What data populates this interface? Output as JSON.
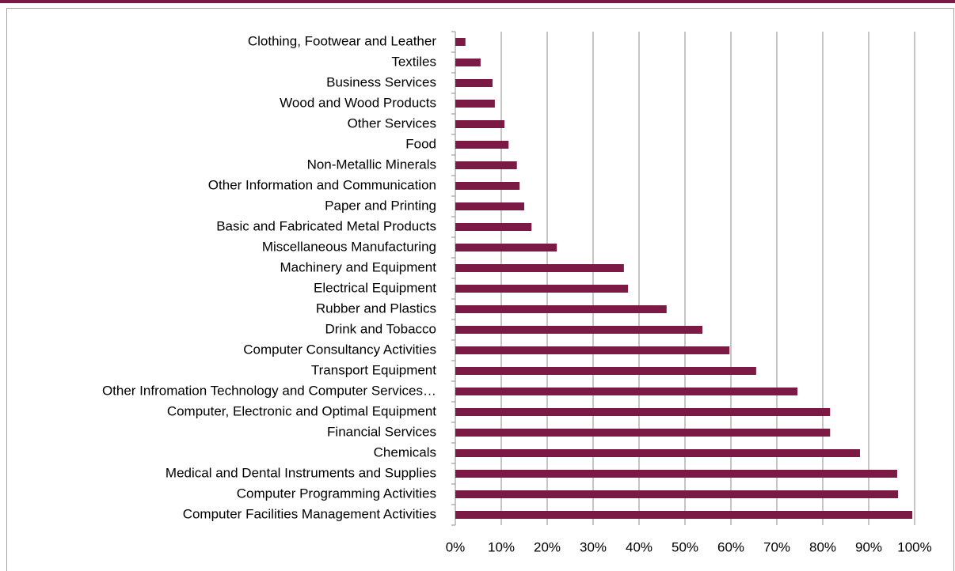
{
  "chart_data": {
    "type": "bar",
    "orientation": "horizontal",
    "categories": [
      "Clothing, Footwear and Leather",
      "Textiles",
      "Business Services",
      "Wood and Wood Products",
      "Other Services",
      "Food",
      "Non-Metallic Minerals",
      "Other Information and Communication",
      "Paper and Printing",
      "Basic and Fabricated Metal Products",
      "Miscellaneous Manufacturing",
      "Machinery and Equipment",
      "Electrical Equipment",
      "Rubber and Plastics",
      "Drink and Tobacco",
      "Computer Consultancy Activities",
      "Transport Equipment",
      "Other Infromation Technology and Computer Services…",
      "Computer, Electronic and Optimal Equipment",
      "Financial Services",
      "Chemicals",
      "Medical and Dental Instruments and Supplies",
      "Computer Programming Activities",
      "Computer Facilities Management Activities"
    ],
    "values": [
      2.2,
      5.5,
      8.1,
      8.6,
      10.7,
      11.6,
      13.4,
      14.0,
      15.0,
      16.6,
      22.1,
      36.7,
      37.6,
      46.0,
      53.8,
      59.7,
      65.5,
      74.5,
      81.6,
      81.6,
      88.1,
      96.2,
      96.4,
      99.5
    ],
    "color": "#7b1b45",
    "xlim": [
      0,
      100
    ],
    "xticks": [
      {
        "value": 0,
        "label": "0%"
      },
      {
        "value": 10,
        "label": "10%"
      },
      {
        "value": 20,
        "label": "20%"
      },
      {
        "value": 30,
        "label": "30%"
      },
      {
        "value": 40,
        "label": "40%"
      },
      {
        "value": 50,
        "label": "50%"
      },
      {
        "value": 60,
        "label": "60%"
      },
      {
        "value": 70,
        "label": "70%"
      },
      {
        "value": 80,
        "label": "80%"
      },
      {
        "value": 90,
        "label": "90%"
      },
      {
        "value": 100,
        "label": "100%"
      }
    ],
    "grid": true
  }
}
